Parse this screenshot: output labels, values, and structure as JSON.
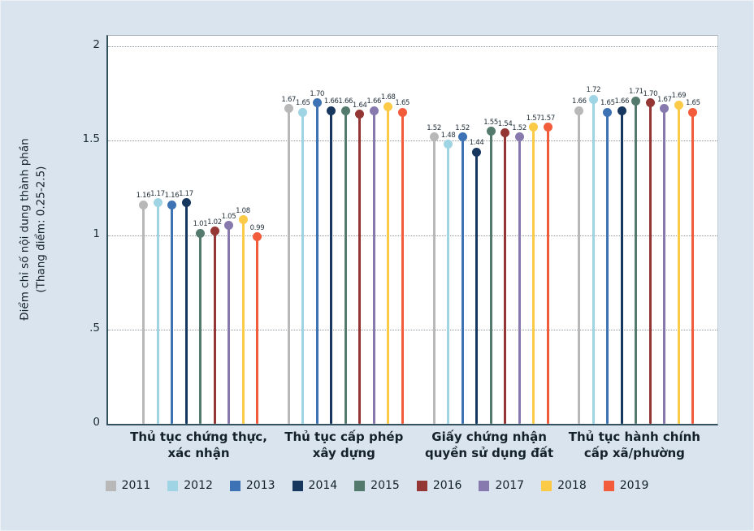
{
  "figure": {
    "background_color": "#d9e4ee",
    "plot_background_color": "#ffffff",
    "axis_color": "#33515f",
    "gridline_color": "#8f989e"
  },
  "chart_data": {
    "type": "lollipop",
    "title": "",
    "ylabel": "Điểm chỉ số nội dung thành phần",
    "ylabel_sub": "(Thang điểm: 0.25-2.5)",
    "ylim": [
      0,
      2.06
    ],
    "grid": "horizontal-dotted",
    "legend_position": "bottom",
    "yticks": [
      {
        "value": 0,
        "label": "0"
      },
      {
        "value": 0.5,
        "label": ".5"
      },
      {
        "value": 1,
        "label": "1"
      },
      {
        "value": 1.5,
        "label": "1.5"
      },
      {
        "value": 2,
        "label": "2"
      }
    ],
    "categories": [
      [
        "Thủ tục chứng thực,",
        "xác nhận"
      ],
      [
        "Thủ tục cấp phép",
        "xây dựng"
      ],
      [
        "Giấy chứng nhận",
        "quyền sử dụng đất"
      ],
      [
        "Thủ tục hành chính",
        "cấp xã/phường"
      ]
    ],
    "series": [
      {
        "name": "2011",
        "color": "#b8b8b8",
        "values": [
          1.16,
          1.67,
          1.52,
          1.66
        ]
      },
      {
        "name": "2012",
        "color": "#9fd4e4",
        "values": [
          1.17,
          1.65,
          1.48,
          1.72
        ]
      },
      {
        "name": "2013",
        "color": "#3d72b4",
        "values": [
          1.16,
          1.7,
          1.52,
          1.65
        ]
      },
      {
        "name": "2014",
        "color": "#17375e",
        "values": [
          1.17,
          1.66,
          1.44,
          1.66
        ]
      },
      {
        "name": "2015",
        "color": "#537a6c",
        "values": [
          1.01,
          1.66,
          1.55,
          1.71
        ]
      },
      {
        "name": "2016",
        "color": "#943634",
        "values": [
          1.02,
          1.64,
          1.54,
          1.7
        ]
      },
      {
        "name": "2017",
        "color": "#8778ad",
        "values": [
          1.05,
          1.66,
          1.52,
          1.67
        ]
      },
      {
        "name": "2018",
        "color": "#fbca47",
        "values": [
          1.08,
          1.68,
          1.57,
          1.69
        ]
      },
      {
        "name": "2019",
        "color": "#f25c3b",
        "values": [
          0.99,
          1.65,
          1.57,
          1.65
        ]
      }
    ]
  }
}
